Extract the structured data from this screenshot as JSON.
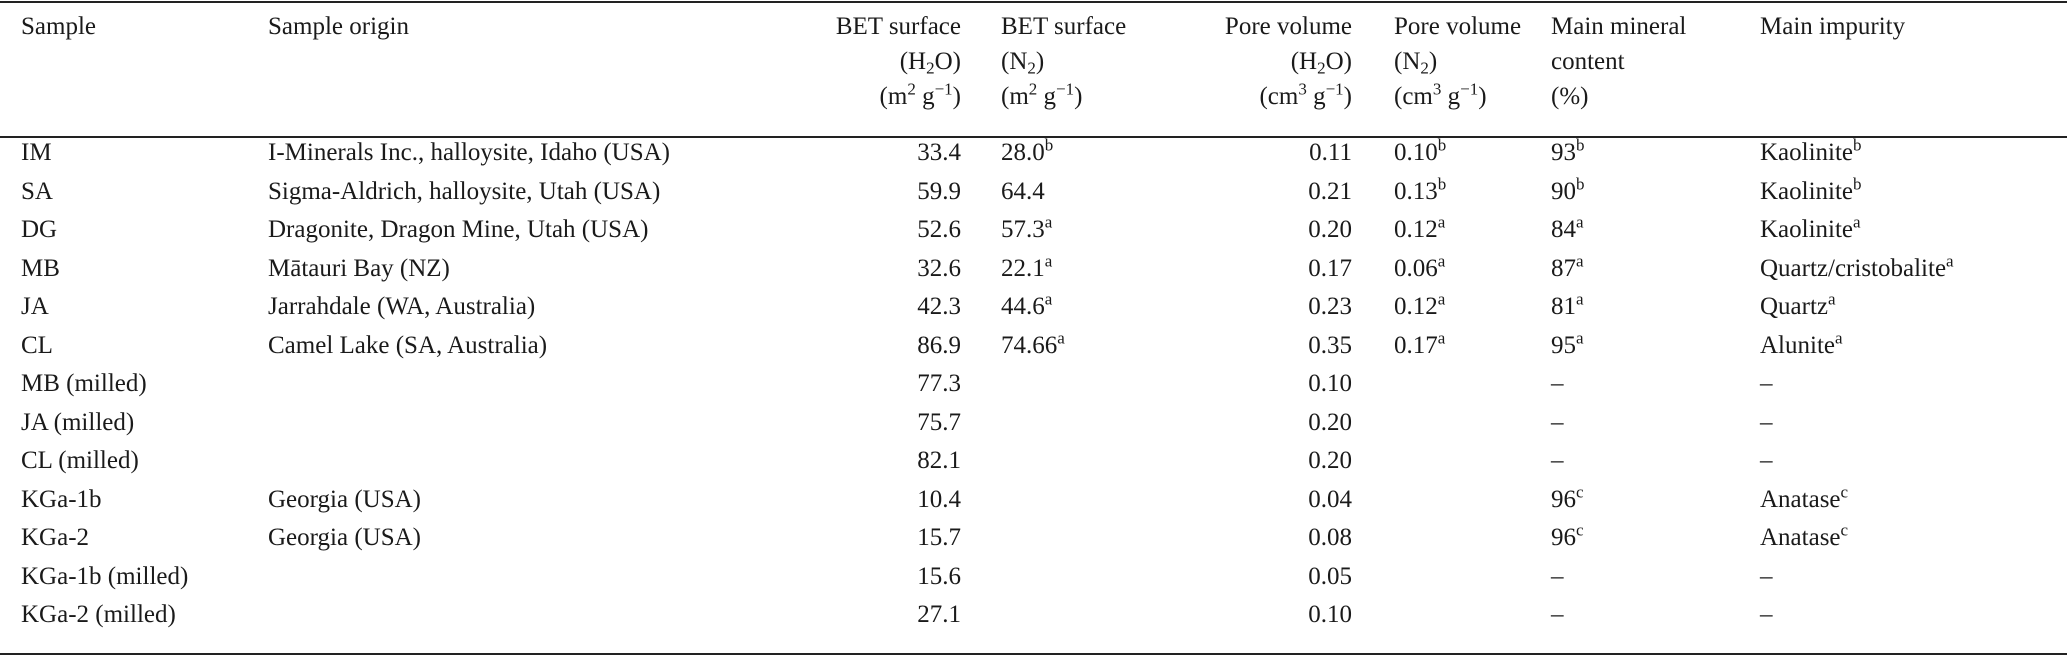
{
  "headers": {
    "sample": "Sample",
    "origin": "Sample origin",
    "bet_h2o": {
      "l1": "BET surface",
      "l2_pre": "(H",
      "l2_sub": "2",
      "l2_post": "O)",
      "l3_pre": "(m",
      "l3_sup": "2",
      "l3_mid": " g",
      "l3_sup2": "−1",
      "l3_post": ")"
    },
    "bet_n2": {
      "l1": "BET surface",
      "l2_pre": "(N",
      "l2_sub": "2",
      "l2_post": ")",
      "l3_pre": "(m",
      "l3_sup": "2",
      "l3_mid": " g",
      "l3_sup2": "−1",
      "l3_post": ")"
    },
    "pv_h2o": {
      "l1": "Pore volume",
      "l2_pre": "(H",
      "l2_sub": "2",
      "l2_post": "O)",
      "l3_pre": "(cm",
      "l3_sup": "3",
      "l3_mid": " g",
      "l3_sup2": "−1",
      "l3_post": ")"
    },
    "pv_n2": {
      "l1": "Pore volume",
      "l2_pre": "(N",
      "l2_sub": "2",
      "l2_post": ")",
      "l3_pre": "(cm",
      "l3_sup": "3",
      "l3_mid": " g",
      "l3_sup2": "−1",
      "l3_post": ")"
    },
    "mineral": {
      "l1": "Main mineral",
      "l2": "content",
      "l3": "(%)"
    },
    "impurity": "Main impurity"
  },
  "rows": [
    {
      "sample": "IM",
      "origin": "I-Minerals Inc., halloysite, Idaho (USA)",
      "bet_h2o": "33.4",
      "bet_n2": "28.0",
      "bet_n2_sup": "b",
      "pv_h2o": "0.11",
      "pv_n2": "0.10",
      "pv_n2_sup": "b",
      "mineral": "93",
      "mineral_sup": "b",
      "impurity": "Kaolinite",
      "impurity_sup": "b"
    },
    {
      "sample": "SA",
      "origin": "Sigma-Aldrich, halloysite, Utah (USA)",
      "bet_h2o": "59.9",
      "bet_n2": "64.4",
      "bet_n2_sup": "",
      "pv_h2o": "0.21",
      "pv_n2": "0.13",
      "pv_n2_sup": "b",
      "mineral": "90",
      "mineral_sup": "b",
      "impurity": "Kaolinite",
      "impurity_sup": "b"
    },
    {
      "sample": "DG",
      "origin": "Dragonite, Dragon Mine, Utah (USA)",
      "bet_h2o": "52.6",
      "bet_n2": "57.3",
      "bet_n2_sup": "a",
      "pv_h2o": "0.20",
      "pv_n2": "0.12",
      "pv_n2_sup": "a",
      "mineral": "84",
      "mineral_sup": "a",
      "impurity": "Kaolinite",
      "impurity_sup": "a"
    },
    {
      "sample": "MB",
      "origin": "Mātauri Bay (NZ)",
      "bet_h2o": "32.6",
      "bet_n2": "22.1",
      "bet_n2_sup": "a",
      "pv_h2o": "0.17",
      "pv_n2": "0.06",
      "pv_n2_sup": "a",
      "mineral": "87",
      "mineral_sup": "a",
      "impurity": "Quartz/cristobalite",
      "impurity_sup": "a"
    },
    {
      "sample": "JA",
      "origin": "Jarrahdale (WA, Australia)",
      "bet_h2o": "42.3",
      "bet_n2": "44.6",
      "bet_n2_sup": "a",
      "pv_h2o": "0.23",
      "pv_n2": "0.12",
      "pv_n2_sup": "a",
      "mineral": "81",
      "mineral_sup": "a",
      "impurity": "Quartz",
      "impurity_sup": "a"
    },
    {
      "sample": "CL",
      "origin": "Camel Lake (SA, Australia)",
      "bet_h2o": "86.9",
      "bet_n2": "74.66",
      "bet_n2_sup": "a",
      "pv_h2o": "0.35",
      "pv_n2": "0.17",
      "pv_n2_sup": "a",
      "mineral": "95",
      "mineral_sup": "a",
      "impurity": "Alunite",
      "impurity_sup": "a"
    },
    {
      "sample": "MB (milled)",
      "origin": "",
      "bet_h2o": "77.3",
      "bet_n2": "",
      "bet_n2_sup": "",
      "pv_h2o": "0.10",
      "pv_n2": "",
      "pv_n2_sup": "",
      "mineral": "–",
      "mineral_sup": "",
      "impurity": "–",
      "impurity_sup": ""
    },
    {
      "sample": "JA (milled)",
      "origin": "",
      "bet_h2o": "75.7",
      "bet_n2": "",
      "bet_n2_sup": "",
      "pv_h2o": "0.20",
      "pv_n2": "",
      "pv_n2_sup": "",
      "mineral": "–",
      "mineral_sup": "",
      "impurity": "–",
      "impurity_sup": ""
    },
    {
      "sample": "CL (milled)",
      "origin": "",
      "bet_h2o": "82.1",
      "bet_n2": "",
      "bet_n2_sup": "",
      "pv_h2o": "0.20",
      "pv_n2": "",
      "pv_n2_sup": "",
      "mineral": "–",
      "mineral_sup": "",
      "impurity": "–",
      "impurity_sup": ""
    },
    {
      "sample": "KGa-1b",
      "origin": "Georgia (USA)",
      "bet_h2o": "10.4",
      "bet_n2": "",
      "bet_n2_sup": "",
      "pv_h2o": "0.04",
      "pv_n2": "",
      "pv_n2_sup": "",
      "mineral": "96",
      "mineral_sup": "c",
      "impurity": "Anatase",
      "impurity_sup": "c"
    },
    {
      "sample": "KGa-2",
      "origin": "Georgia (USA)",
      "bet_h2o": "15.7",
      "bet_n2": "",
      "bet_n2_sup": "",
      "pv_h2o": "0.08",
      "pv_n2": "",
      "pv_n2_sup": "",
      "mineral": "96",
      "mineral_sup": "c",
      "impurity": "Anatase",
      "impurity_sup": "c"
    },
    {
      "sample": "KGa-1b (milled)",
      "origin": "",
      "bet_h2o": "15.6",
      "bet_n2": "",
      "bet_n2_sup": "",
      "pv_h2o": "0.05",
      "pv_n2": "",
      "pv_n2_sup": "",
      "mineral": "–",
      "mineral_sup": "",
      "impurity": "–",
      "impurity_sup": ""
    },
    {
      "sample": "KGa-2 (milled)",
      "origin": "",
      "bet_h2o": "27.1",
      "bet_n2": "",
      "bet_n2_sup": "",
      "pv_h2o": "0.10",
      "pv_n2": "",
      "pv_n2_sup": "",
      "mineral": "–",
      "mineral_sup": "",
      "impurity": "–",
      "impurity_sup": ""
    }
  ]
}
